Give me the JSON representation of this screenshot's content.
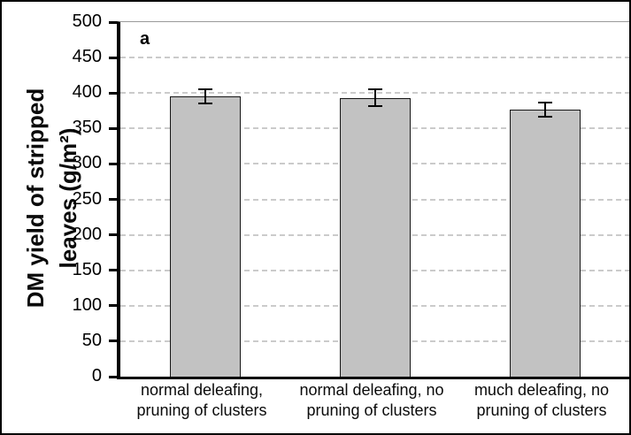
{
  "chart_data": {
    "type": "bar",
    "panel_label": "a",
    "title": "",
    "categories": [
      "normal deleafing,\npruning of clusters",
      "normal deleafing, no\npruning of clusters",
      "much deleafing, no\npruning of clusters"
    ],
    "values": [
      395,
      393,
      377
    ],
    "error_bars": [
      10,
      12,
      10
    ],
    "ylabel": "DM yield of stripped leaves (g/m²)",
    "ylabel_display": "DM yield of stripped\nleaves (g/m²)",
    "ylim": [
      0,
      500
    ],
    "ytick_step": 50,
    "yticks": [
      0,
      50,
      100,
      150,
      200,
      250,
      300,
      350,
      400,
      450,
      500
    ],
    "grid": "horizontal-dashed",
    "legend": "none",
    "bar_fill": "#c2c2c2",
    "bar_border": "#161616",
    "axis_color": "#000000",
    "gridline_color": "#cbcbcb",
    "plot_border_color": "#9a9a9a",
    "error_bar_color": "#000000",
    "background": "#ffffff"
  }
}
